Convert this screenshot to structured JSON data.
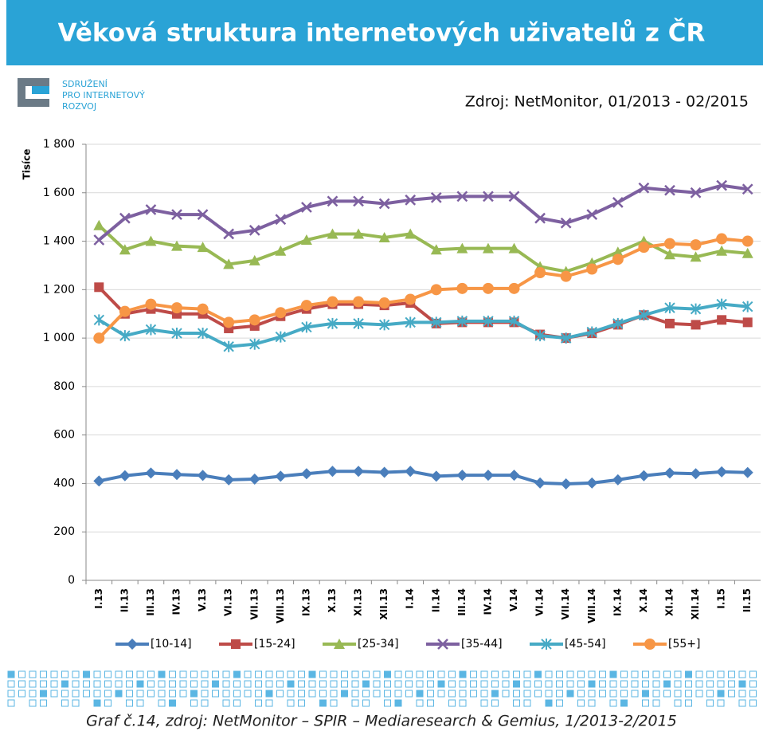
{
  "logo": [
    "SDRUŽENÍ",
    "PRO INTERNETOVÝ",
    "ROZVOJ"
  ],
  "source": "Zdroj: NetMonitor, 01/2013 - 02/2015",
  "caption": "Graf č.14, zdroj: NetMonitor – SPIR – Mediaresearch & Gemius, 1/2013-2/2015",
  "chart_data": {
    "type": "line",
    "title": "Věková struktura internetových uživatelů z ČR",
    "y_label": "Tisíce",
    "categories": [
      "I.13",
      "II.13",
      "III.13",
      "IV.13",
      "V.13",
      "VI.13",
      "VII.13",
      "VIII.13",
      "IX.13",
      "X.13",
      "XI.13",
      "XII.13",
      "I.14",
      "II.14",
      "III.14",
      "IV.14",
      "V.14",
      "VI.14",
      "VII.14",
      "VIII.14",
      "IX.14",
      "X.14",
      "XI.14",
      "XII.14",
      "I.15",
      "II.15"
    ],
    "ylim": [
      0,
      1800
    ],
    "yticks": [
      0,
      200,
      400,
      600,
      800,
      {
        "value": 1000,
        "label": "1 000"
      },
      {
        "value": 1200,
        "label": "1 200"
      },
      {
        "value": 1400,
        "label": "1 400"
      },
      {
        "value": 1600,
        "label": "1 600"
      },
      {
        "value": 1800,
        "label": "1 800"
      }
    ],
    "grid": true,
    "legend": "bottom",
    "series": [
      {
        "name": "[10-14]",
        "color": "#4a7ebb",
        "marker": "diamond",
        "values": [
          410,
          432,
          443,
          437,
          433,
          415,
          418,
          430,
          440,
          450,
          450,
          446,
          450,
          430,
          434,
          434,
          434,
          402,
          398,
          402,
          415,
          432,
          443,
          440,
          448,
          445
        ]
      },
      {
        "name": "[15-24]",
        "color": "#be4b48",
        "marker": "square",
        "values": [
          1210,
          1100,
          1120,
          1100,
          1100,
          1040,
          1050,
          1090,
          1120,
          1140,
          1140,
          1135,
          1145,
          1060,
          1065,
          1065,
          1065,
          1015,
          1000,
          1020,
          1055,
          1095,
          1060,
          1055,
          1075,
          1065
        ]
      },
      {
        "name": "[25-34]",
        "color": "#98b954",
        "marker": "triangle",
        "values": [
          1465,
          1365,
          1400,
          1380,
          1375,
          1305,
          1320,
          1360,
          1405,
          1430,
          1430,
          1415,
          1430,
          1365,
          1370,
          1370,
          1370,
          1295,
          1275,
          1310,
          1355,
          1400,
          1345,
          1335,
          1360,
          1350
        ]
      },
      {
        "name": "[35-44]",
        "color": "#7d60a0",
        "marker": "x",
        "values": [
          1405,
          1495,
          1530,
          1510,
          1510,
          1430,
          1445,
          1490,
          1540,
          1565,
          1565,
          1555,
          1570,
          1580,
          1585,
          1585,
          1585,
          1495,
          1475,
          1510,
          1560,
          1620,
          1610,
          1600,
          1630,
          1615
        ]
      },
      {
        "name": "[45-54]",
        "color": "#46aac5",
        "marker": "star",
        "values": [
          1075,
          1010,
          1035,
          1020,
          1020,
          965,
          975,
          1005,
          1045,
          1060,
          1060,
          1055,
          1065,
          1065,
          1070,
          1070,
          1070,
          1010,
          1000,
          1025,
          1060,
          1095,
          1125,
          1120,
          1140,
          1130
        ]
      },
      {
        "name": "[55+]",
        "color": "#f79646",
        "marker": "circle",
        "values": [
          1000,
          1110,
          1140,
          1125,
          1120,
          1065,
          1075,
          1105,
          1135,
          1150,
          1150,
          1145,
          1160,
          1200,
          1205,
          1205,
          1205,
          1270,
          1255,
          1285,
          1325,
          1375,
          1390,
          1385,
          1410,
          1400
        ]
      }
    ]
  }
}
